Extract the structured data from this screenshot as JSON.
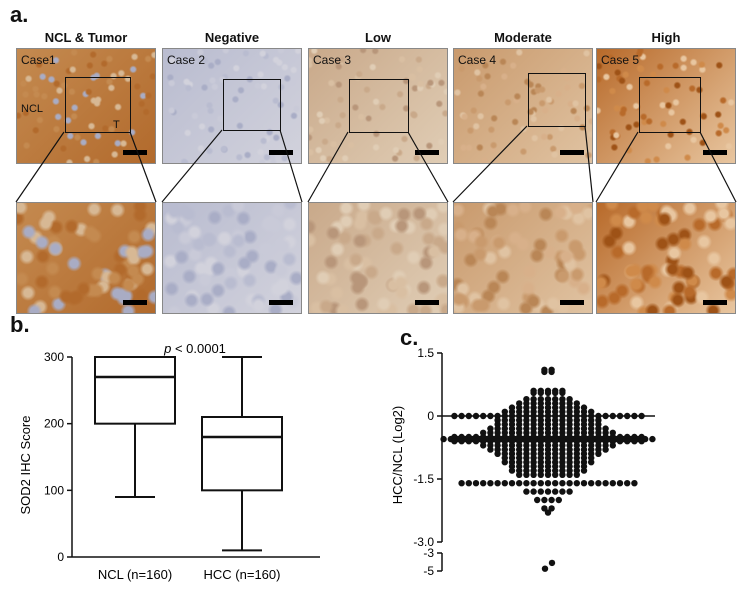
{
  "panel_a": {
    "letter": "a.",
    "columns": [
      {
        "title": "NCL & Tumor",
        "case": "Case1",
        "labels": [
          "NCL",
          "T"
        ],
        "tone": "mixed"
      },
      {
        "title": "Negative",
        "case": "Case 2",
        "tone": "negative"
      },
      {
        "title": "Low",
        "case": "Case 3",
        "tone": "low"
      },
      {
        "title": "Moderate",
        "case": "Case 4",
        "tone": "moderate"
      },
      {
        "title": "High",
        "case": "Case 5",
        "tone": "high"
      }
    ]
  },
  "panel_b": {
    "letter": "b."
  },
  "panel_c": {
    "letter": "c."
  },
  "chart_data": [
    {
      "type": "box",
      "ylabel": "SOD2 IHC Score",
      "ylim": [
        0,
        300
      ],
      "yticks": [
        0,
        100,
        200,
        300
      ],
      "annotation": {
        "p_symbol": "p",
        "p_text": " < 0.0001"
      },
      "categories": [
        "NCL (n=160)",
        "HCC (n=160)"
      ],
      "boxes": [
        {
          "name": "NCL (n=160)",
          "min": 90,
          "q1": 200,
          "median": 270,
          "q3": 300,
          "max": 300
        },
        {
          "name": "HCC (n=160)",
          "min": 10,
          "q1": 100,
          "median": 180,
          "q3": 210,
          "max": 300
        }
      ]
    },
    {
      "type": "scatter",
      "ylabel": "HCC/NCL (Log2)",
      "ylim": [
        -3,
        1.5
      ],
      "yticks": [
        "1.5",
        "0",
        "-1.5",
        "-3.0"
      ],
      "broken_axis_ticks": [
        "-3",
        "-5"
      ],
      "reference_line": 0,
      "rows": [
        {
          "y": 1.1,
          "count": 2
        },
        {
          "y": 1.05,
          "count": 2
        },
        {
          "y": 0.6,
          "count": 5
        },
        {
          "y": 0.55,
          "count": 5
        },
        {
          "y": 0.4,
          "count": 7
        },
        {
          "y": 0.3,
          "count": 9
        },
        {
          "y": 0.2,
          "count": 11
        },
        {
          "y": 0.1,
          "count": 13
        },
        {
          "y": 0.0,
          "count": 27
        },
        {
          "y": -0.1,
          "count": 15
        },
        {
          "y": -0.2,
          "count": 15
        },
        {
          "y": -0.3,
          "count": 17
        },
        {
          "y": -0.4,
          "count": 19
        },
        {
          "y": -0.5,
          "count": 27
        },
        {
          "y": -0.55,
          "count": 30
        },
        {
          "y": -0.6,
          "count": 27
        },
        {
          "y": -0.7,
          "count": 19
        },
        {
          "y": -0.8,
          "count": 17
        },
        {
          "y": -0.9,
          "count": 15
        },
        {
          "y": -1.0,
          "count": 13
        },
        {
          "y": -1.1,
          "count": 13
        },
        {
          "y": -1.2,
          "count": 11
        },
        {
          "y": -1.3,
          "count": 11
        },
        {
          "y": -1.4,
          "count": 9
        },
        {
          "y": -1.6,
          "count": 25
        },
        {
          "y": -1.8,
          "count": 7
        },
        {
          "y": -2.0,
          "count": 4
        },
        {
          "y": -2.2,
          "count": 2
        },
        {
          "y": -2.3,
          "count": 1
        }
      ],
      "outliers": [
        {
          "y": -4.3
        },
        {
          "y": -4.1
        }
      ]
    }
  ]
}
